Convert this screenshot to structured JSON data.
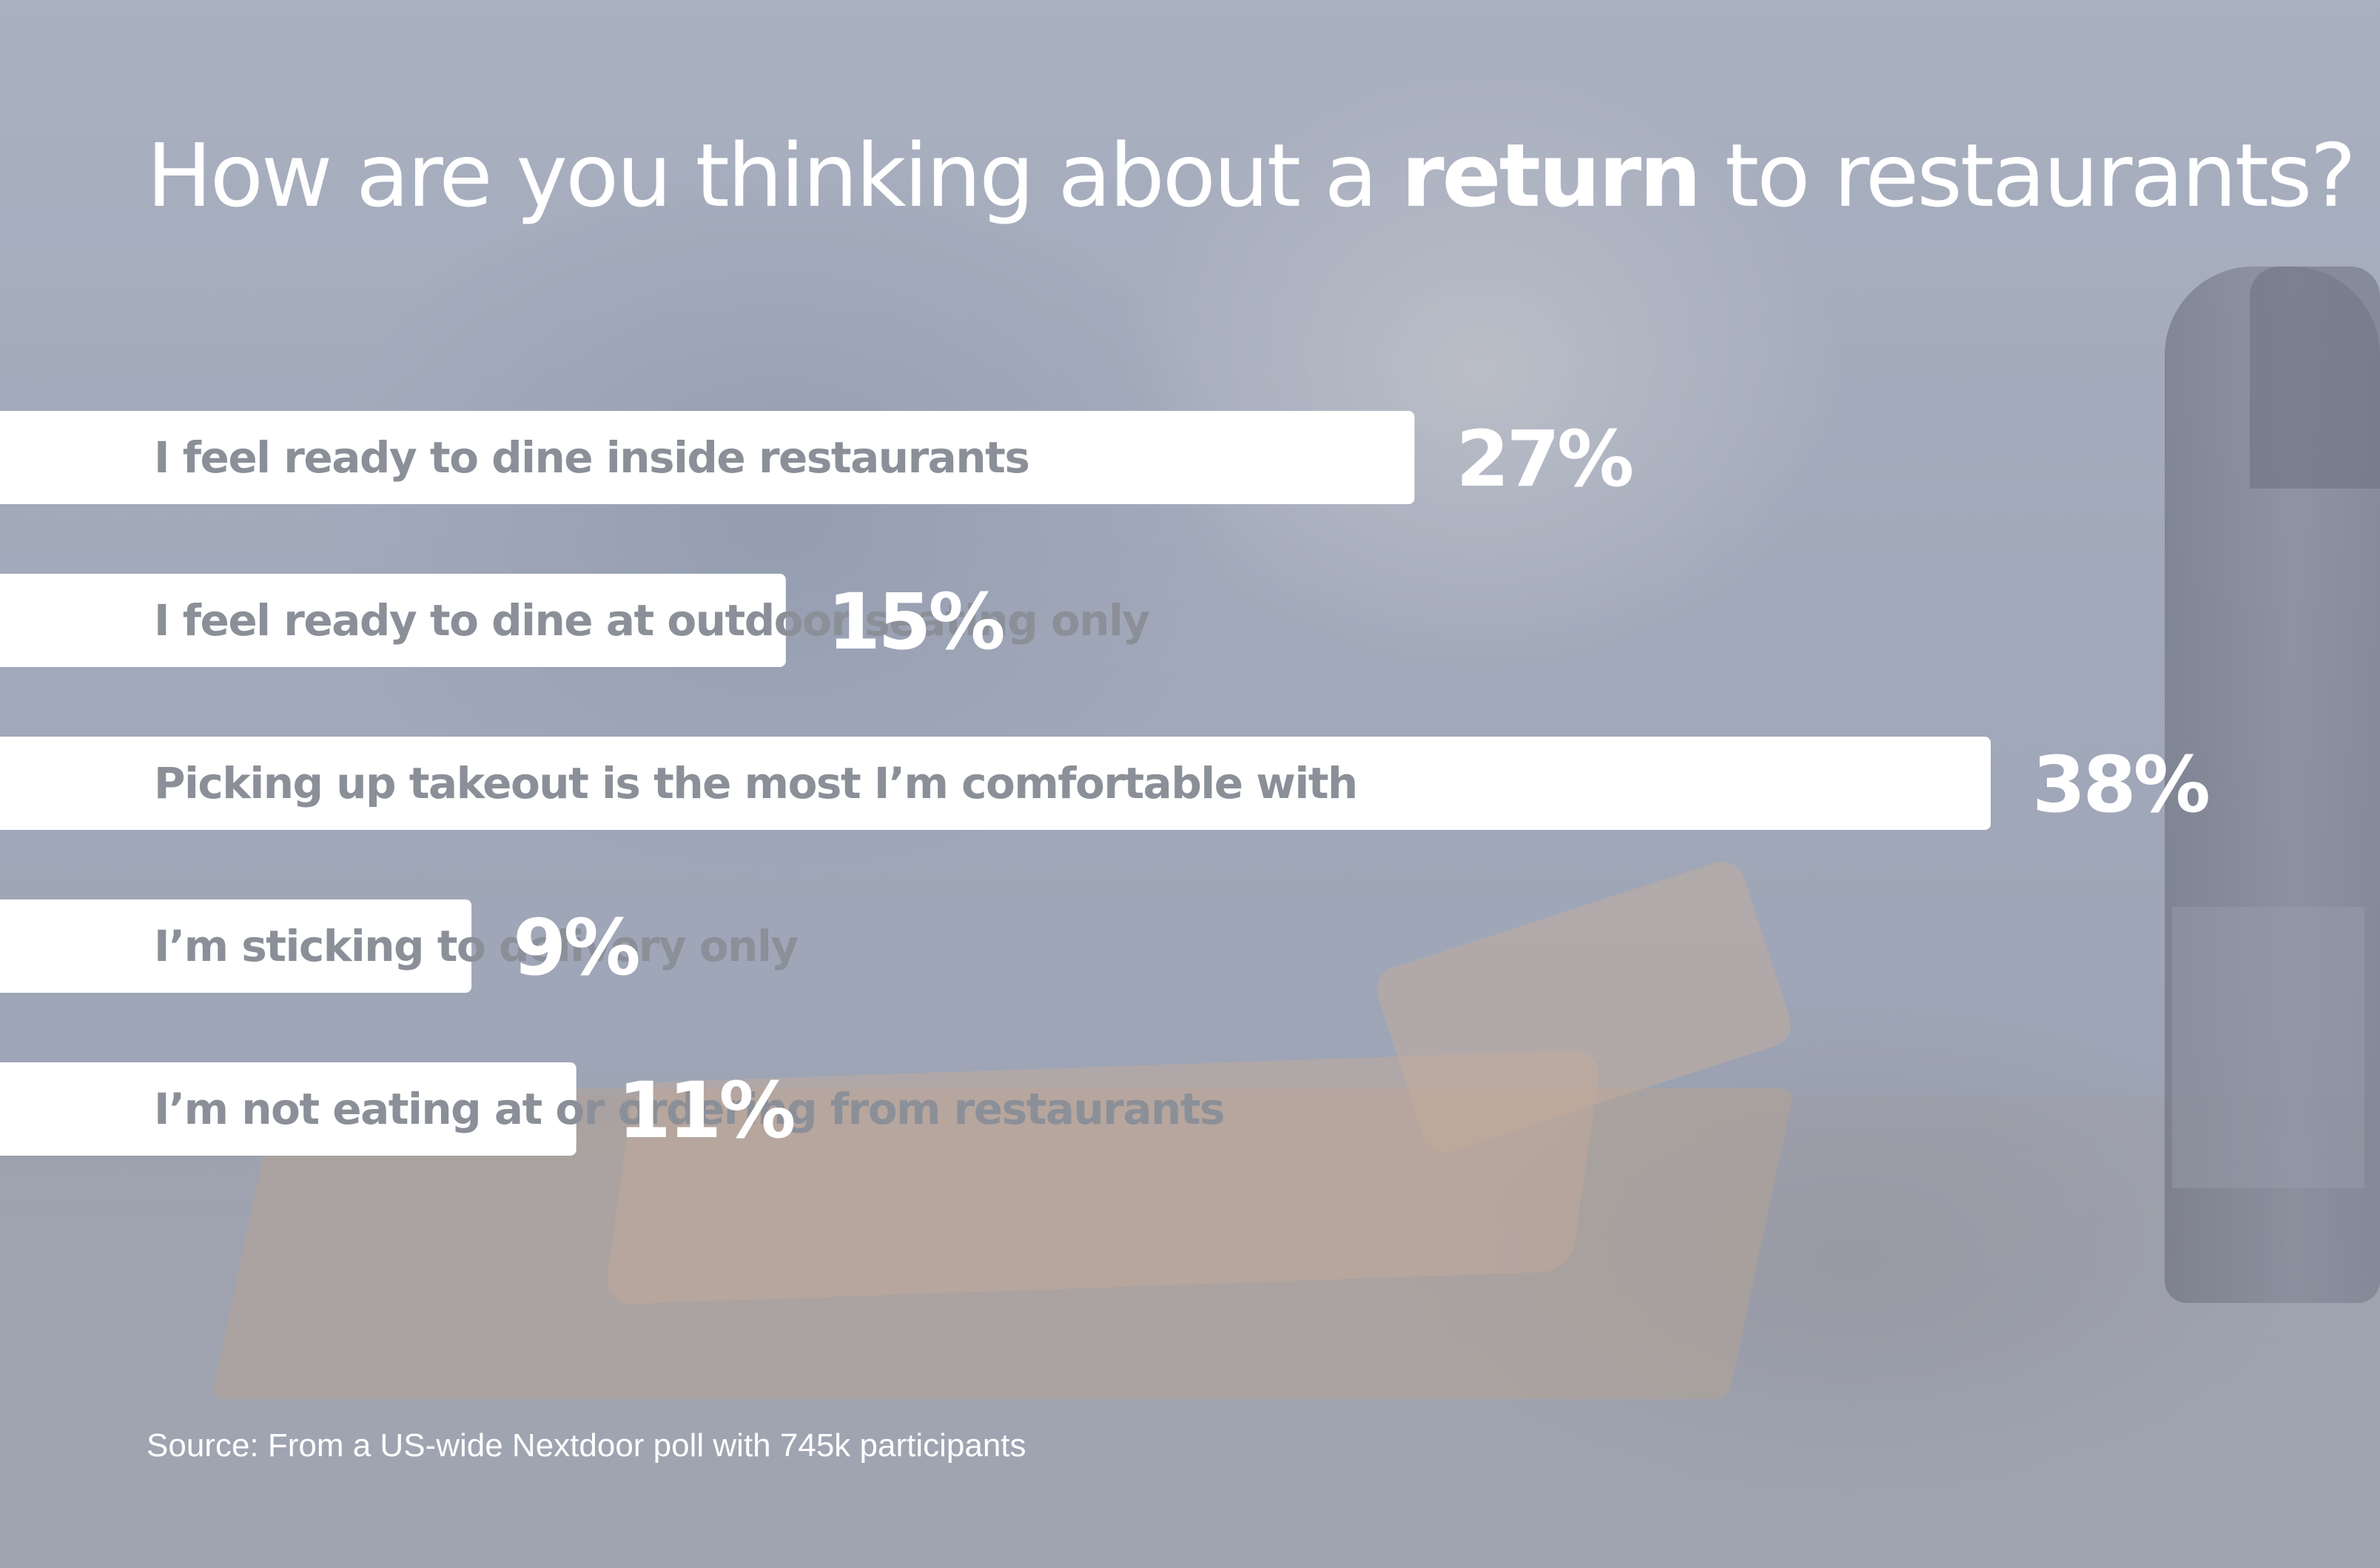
{
  "title": {
    "before": "How are you thinking about a ",
    "bold": "return",
    "after": " to restaurants?"
  },
  "chart_data": {
    "type": "bar",
    "orientation": "horizontal",
    "title": "How are you thinking about a return to restaurants?",
    "categories": [
      "I feel ready to dine inside restaurants",
      "I feel ready to dine at outdoor seating only",
      "Picking up takeout is the most I’m comfortable with",
      "I’m sticking to delivery only",
      "I’m not eating at or ordering from restaurants"
    ],
    "values": [
      27,
      15,
      38,
      9,
      11
    ],
    "value_labels": [
      "27%",
      "15%",
      "38%",
      "9%",
      "11%"
    ],
    "grid": false,
    "legend": "none"
  },
  "source": "Source: From a US-wide Nextdoor poll with 745k participants",
  "colors": {
    "bar": "#ffffff",
    "category_text": "#8b8f98",
    "value_text": "#ffffff",
    "overlay": "#a0a8ba"
  }
}
